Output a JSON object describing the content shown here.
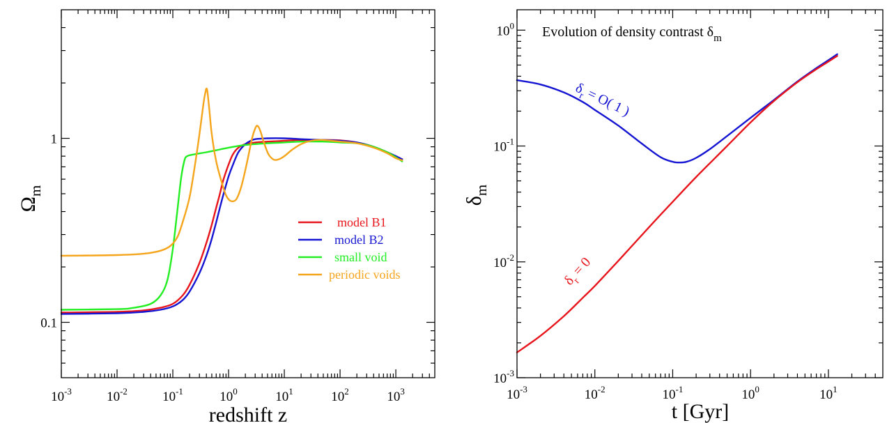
{
  "colors": {
    "red": "#e8141b",
    "blue": "#1414d2",
    "green": "#22ee22",
    "orange": "#f5a51b",
    "black": "#000000"
  },
  "chart_data": [
    {
      "type": "line",
      "xscale": "log",
      "yscale": "log",
      "xlim": [
        0.001,
        5000
      ],
      "ylim": [
        0.05,
        5
      ],
      "xlabel": "redshift z",
      "ylabel": "Ωm",
      "ylabel_main": "Ω",
      "ylabel_sub": "m",
      "x_ticks": [
        {
          "value": 0.001,
          "base": "10",
          "exp": "-3"
        },
        {
          "value": 0.01,
          "base": "10",
          "exp": "-2"
        },
        {
          "value": 0.1,
          "base": "10",
          "exp": "-1"
        },
        {
          "value": 1,
          "base": "10",
          "exp": "0"
        },
        {
          "value": 10,
          "base": "10",
          "exp": "1"
        },
        {
          "value": 100,
          "base": "10",
          "exp": "2"
        },
        {
          "value": 1000,
          "base": "10",
          "exp": "3"
        }
      ],
      "y_ticks": [
        {
          "value": 0.1,
          "label": "0.1"
        },
        {
          "value": 1,
          "label": "1"
        }
      ],
      "legend_position": "center-right",
      "series": [
        {
          "name": "model B1",
          "color": "#e8141b",
          "points": [
            [
              0.001,
              0.113
            ],
            [
              0.01,
              0.114
            ],
            [
              0.03,
              0.116
            ],
            [
              0.06,
              0.12
            ],
            [
              0.1,
              0.126
            ],
            [
              0.15,
              0.14
            ],
            [
              0.2,
              0.16
            ],
            [
              0.3,
              0.21
            ],
            [
              0.4,
              0.27
            ],
            [
              0.5,
              0.34
            ],
            [
              0.6,
              0.42
            ],
            [
              0.7,
              0.5
            ],
            [
              0.8,
              0.59
            ],
            [
              1.0,
              0.72
            ],
            [
              1.2,
              0.82
            ],
            [
              1.5,
              0.89
            ],
            [
              2,
              0.93
            ],
            [
              3,
              0.95
            ],
            [
              5,
              0.96
            ],
            [
              10,
              0.97
            ],
            [
              20,
              0.98
            ],
            [
              50,
              0.98
            ],
            [
              100,
              0.975
            ],
            [
              200,
              0.95
            ],
            [
              400,
              0.9
            ],
            [
              700,
              0.84
            ],
            [
              1000,
              0.8
            ],
            [
              1300,
              0.77
            ]
          ]
        },
        {
          "name": "model B2",
          "color": "#1414d2",
          "points": [
            [
              0.001,
              0.111
            ],
            [
              0.01,
              0.112
            ],
            [
              0.03,
              0.114
            ],
            [
              0.06,
              0.117
            ],
            [
              0.1,
              0.122
            ],
            [
              0.15,
              0.132
            ],
            [
              0.2,
              0.147
            ],
            [
              0.3,
              0.185
            ],
            [
              0.4,
              0.23
            ],
            [
              0.5,
              0.285
            ],
            [
              0.6,
              0.35
            ],
            [
              0.7,
              0.42
            ],
            [
              0.8,
              0.49
            ],
            [
              1.0,
              0.62
            ],
            [
              1.2,
              0.72
            ],
            [
              1.5,
              0.84
            ],
            [
              2,
              0.93
            ],
            [
              2.5,
              0.97
            ],
            [
              3,
              0.99
            ],
            [
              5,
              1.0
            ],
            [
              10,
              1.0
            ],
            [
              20,
              0.99
            ],
            [
              50,
              0.98
            ],
            [
              100,
              0.97
            ],
            [
              200,
              0.95
            ],
            [
              400,
              0.9
            ],
            [
              700,
              0.84
            ],
            [
              1000,
              0.8
            ],
            [
              1300,
              0.77
            ]
          ]
        },
        {
          "name": "small void",
          "color": "#22ee22",
          "points": [
            [
              0.001,
              0.117
            ],
            [
              0.01,
              0.118
            ],
            [
              0.02,
              0.12
            ],
            [
              0.04,
              0.126
            ],
            [
              0.06,
              0.14
            ],
            [
              0.08,
              0.17
            ],
            [
              0.1,
              0.25
            ],
            [
              0.12,
              0.4
            ],
            [
              0.14,
              0.6
            ],
            [
              0.16,
              0.75
            ],
            [
              0.18,
              0.8
            ],
            [
              0.25,
              0.82
            ],
            [
              0.4,
              0.84
            ],
            [
              0.7,
              0.87
            ],
            [
              1,
              0.89
            ],
            [
              2,
              0.92
            ],
            [
              5,
              0.94
            ],
            [
              10,
              0.95
            ],
            [
              20,
              0.96
            ],
            [
              50,
              0.96
            ],
            [
              100,
              0.95
            ],
            [
              200,
              0.94
            ],
            [
              400,
              0.9
            ],
            [
              700,
              0.84
            ],
            [
              1000,
              0.79
            ],
            [
              1300,
              0.75
            ]
          ]
        },
        {
          "name": "periodic voids",
          "color": "#f5a51b",
          "points": [
            [
              0.001,
              0.23
            ],
            [
              0.01,
              0.232
            ],
            [
              0.03,
              0.236
            ],
            [
              0.06,
              0.245
            ],
            [
              0.09,
              0.26
            ],
            [
              0.12,
              0.29
            ],
            [
              0.15,
              0.35
            ],
            [
              0.2,
              0.48
            ],
            [
              0.25,
              0.72
            ],
            [
              0.3,
              1.05
            ],
            [
              0.35,
              1.5
            ],
            [
              0.38,
              1.75
            ],
            [
              0.41,
              1.85
            ],
            [
              0.45,
              1.45
            ],
            [
              0.5,
              1.05
            ],
            [
              0.6,
              0.75
            ],
            [
              0.75,
              0.58
            ],
            [
              0.9,
              0.49
            ],
            [
              1.05,
              0.46
            ],
            [
              1.2,
              0.455
            ],
            [
              1.4,
              0.47
            ],
            [
              1.7,
              0.55
            ],
            [
              2.1,
              0.72
            ],
            [
              2.6,
              0.98
            ],
            [
              3.0,
              1.13
            ],
            [
              3.3,
              1.17
            ],
            [
              3.7,
              1.1
            ],
            [
              4.3,
              0.95
            ],
            [
              5.2,
              0.82
            ],
            [
              6.5,
              0.765
            ],
            [
              8,
              0.77
            ],
            [
              10,
              0.8
            ],
            [
              14,
              0.87
            ],
            [
              20,
              0.93
            ],
            [
              30,
              0.97
            ],
            [
              45,
              0.98
            ],
            [
              70,
              0.97
            ],
            [
              100,
              0.96
            ],
            [
              200,
              0.94
            ],
            [
              400,
              0.89
            ],
            [
              700,
              0.83
            ],
            [
              1000,
              0.78
            ],
            [
              1300,
              0.76
            ]
          ]
        }
      ]
    },
    {
      "type": "line",
      "xscale": "log",
      "yscale": "log",
      "xlim": [
        0.001,
        50
      ],
      "ylim": [
        0.001,
        1.5
      ],
      "xlabel": "t [Gyr]",
      "ylabel": "δm",
      "ylabel_main": "δ",
      "ylabel_sub": "m",
      "title_main": "Evolution of density contrast δ",
      "title_sub": "m",
      "x_ticks": [
        {
          "value": 0.001,
          "base": "10",
          "exp": "-3"
        },
        {
          "value": 0.01,
          "base": "10",
          "exp": "-2"
        },
        {
          "value": 0.1,
          "base": "10",
          "exp": "-1"
        },
        {
          "value": 1,
          "base": "10",
          "exp": "0"
        },
        {
          "value": 10,
          "base": "10",
          "exp": "1"
        }
      ],
      "y_ticks": [
        {
          "value": 0.001,
          "base": "10",
          "exp": "-3"
        },
        {
          "value": 0.01,
          "base": "10",
          "exp": "-2"
        },
        {
          "value": 0.1,
          "base": "10",
          "exp": "-1"
        },
        {
          "value": 1,
          "base": "10",
          "exp": "0"
        }
      ],
      "series": [
        {
          "name": "δr = O(1)",
          "color": "#1414d2",
          "points": [
            [
              0.001,
              0.37
            ],
            [
              0.002,
              0.34
            ],
            [
              0.004,
              0.29
            ],
            [
              0.007,
              0.24
            ],
            [
              0.01,
              0.205
            ],
            [
              0.02,
              0.15
            ],
            [
              0.04,
              0.105
            ],
            [
              0.07,
              0.08
            ],
            [
              0.1,
              0.073
            ],
            [
              0.12,
              0.072
            ],
            [
              0.15,
              0.073
            ],
            [
              0.2,
              0.079
            ],
            [
              0.3,
              0.094
            ],
            [
              0.5,
              0.122
            ],
            [
              1,
              0.175
            ],
            [
              2,
              0.25
            ],
            [
              4,
              0.36
            ],
            [
              7,
              0.47
            ],
            [
              10,
              0.55
            ],
            [
              13,
              0.62
            ]
          ]
        },
        {
          "name": "δr = 0",
          "color": "#e8141b",
          "points": [
            [
              0.001,
              0.00165
            ],
            [
              0.002,
              0.0023
            ],
            [
              0.004,
              0.0034
            ],
            [
              0.007,
              0.0049
            ],
            [
              0.01,
              0.0062
            ],
            [
              0.02,
              0.0102
            ],
            [
              0.05,
              0.02
            ],
            [
              0.1,
              0.033
            ],
            [
              0.2,
              0.054
            ],
            [
              0.5,
              0.1
            ],
            [
              1,
              0.16
            ],
            [
              2,
              0.245
            ],
            [
              4,
              0.355
            ],
            [
              7,
              0.46
            ],
            [
              10,
              0.535
            ],
            [
              13,
              0.6
            ]
          ]
        }
      ],
      "annotations": [
        {
          "id": "blue",
          "main": "δ",
          "sub": "r",
          "rest": " = O( 1 )",
          "x": 0.0055,
          "y": 0.3,
          "color": "#1414d2"
        },
        {
          "id": "red",
          "main": "δ",
          "sub": "r",
          "rest": " = 0",
          "x": 0.0048,
          "y": 0.0062,
          "color": "#e8141b"
        }
      ]
    }
  ]
}
